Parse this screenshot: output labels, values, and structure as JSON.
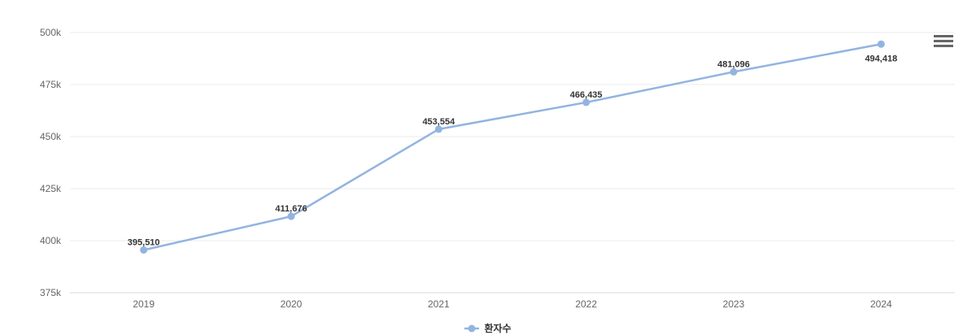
{
  "chart_data": {
    "type": "line",
    "title": "",
    "xlabel": "",
    "ylabel": "",
    "categories": [
      "2019",
      "2020",
      "2021",
      "2022",
      "2023",
      "2024"
    ],
    "series": [
      {
        "name": "환자수",
        "values": [
          395510,
          411676,
          453554,
          466435,
          481096,
          494418
        ],
        "data_labels": [
          "395,510",
          "411,676",
          "453,554",
          "466,435",
          "481,096",
          "494,418"
        ]
      }
    ],
    "ylim": [
      375000,
      500000
    ],
    "yticks": [
      {
        "value": 375000,
        "label": "375k"
      },
      {
        "value": 400000,
        "label": "400k"
      },
      {
        "value": 425000,
        "label": "425k"
      },
      {
        "value": 450000,
        "label": "450k"
      },
      {
        "value": 475000,
        "label": "475k"
      },
      {
        "value": 500000,
        "label": "500k"
      }
    ],
    "grid": true,
    "legend_position": "bottom",
    "colors": {
      "series": "#92b4e0",
      "grid": "#ebebeb",
      "axis_line": "#d9d9d9",
      "tick_label": "#666666",
      "data_label": "#333333",
      "legend_text": "#333333",
      "menu_icon": "#666666",
      "background": "#ffffff"
    }
  },
  "toolbar": {
    "context_menu_icon": "hamburger-menu-icon"
  }
}
